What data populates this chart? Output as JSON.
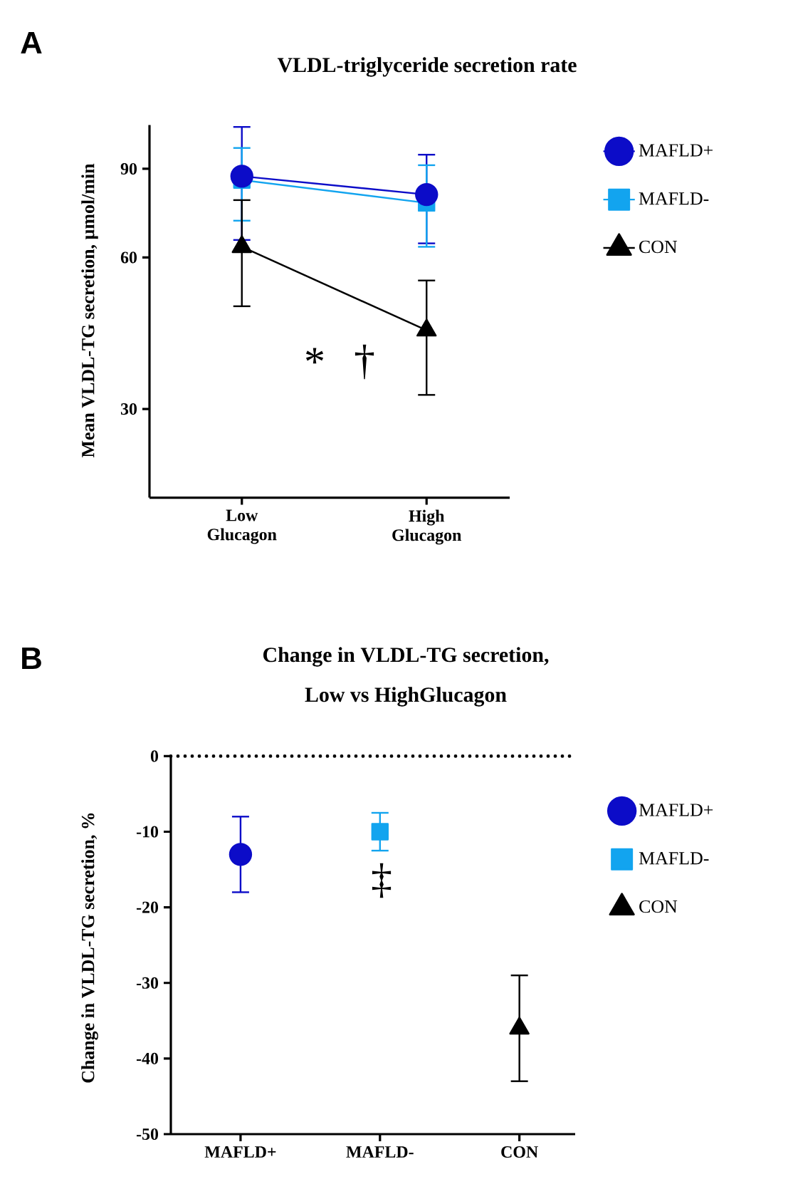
{
  "chart_data": [
    {
      "type": "line",
      "title": "VLDL-triglyceride secretion rate",
      "ylabel": "Mean VLDL-TG secretion, µmol/min",
      "categories": [
        "Low Glucagon",
        "High Glucagon"
      ],
      "log": true,
      "ylim": [
        20,
        110
      ],
      "yticks": [
        30,
        60,
        90
      ],
      "legend": "right",
      "series": [
        {
          "name": "MAFLD+",
          "color": "#0c0cc8",
          "marker": "circle",
          "values": [
            87,
            80
          ],
          "errors": [
            [
              65,
              109
            ],
            [
              64,
              96
            ]
          ]
        },
        {
          "name": "MAFLD-",
          "color": "#12a4ef",
          "marker": "square",
          "values": [
            85.5,
            77
          ],
          "errors": [
            [
              71,
              99
            ],
            [
              63,
              91.5
            ]
          ]
        },
        {
          "name": "CON",
          "color": "#000000",
          "marker": "triangle",
          "values": [
            63,
            43
          ],
          "errors": [
            [
              48,
              78
            ],
            [
              32,
              54
            ]
          ]
        }
      ],
      "annotations": [
        "A",
        "*",
        "†"
      ]
    },
    {
      "type": "scatter",
      "title": "Change in VLDL-TG secretion,",
      "subtitle": "Low vs HighGlucagon",
      "ylabel": "Change in VLDL-TG secretion, %",
      "categories": [
        "MAFLD+",
        "MAFLD-",
        "CON"
      ],
      "ylim": [
        -50,
        0
      ],
      "yticks": [
        -50,
        -40,
        -30,
        -20,
        -10,
        0
      ],
      "legend": "right",
      "ref_lines": [
        {
          "axis": "y",
          "value": 0,
          "line_style": "dotted",
          "color": "#000000"
        }
      ],
      "series": [
        {
          "name": "MAFLD+",
          "color": "#0c0cc8",
          "marker": "circle",
          "values": [
            -13,
            null,
            null
          ],
          "errors": [
            [
              -18,
              -8
            ],
            null,
            null
          ]
        },
        {
          "name": "MAFLD-",
          "color": "#12a4ef",
          "marker": "square",
          "values": [
            null,
            -10,
            null
          ],
          "errors": [
            null,
            [
              -12.5,
              -7.5
            ],
            null
          ]
        },
        {
          "name": "CON",
          "color": "#000000",
          "marker": "triangle",
          "values": [
            null,
            null,
            -36
          ],
          "errors": [
            null,
            null,
            [
              -43,
              -29
            ]
          ]
        }
      ],
      "annotations": [
        "B",
        "‡"
      ]
    }
  ]
}
